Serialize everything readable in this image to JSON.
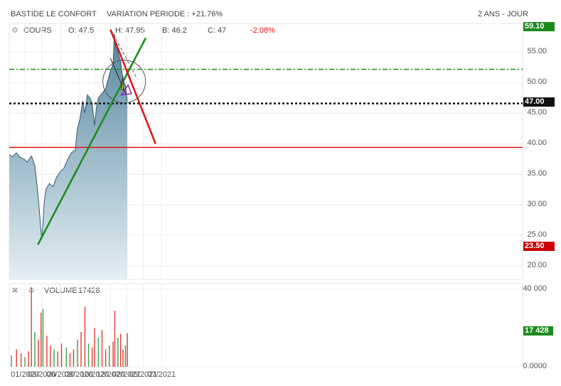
{
  "header": {
    "title": "BASTIDE LE CONFORT",
    "variation": "VARIATION PERIODE : +21.76%",
    "period": "2 ANS - JOUR"
  },
  "quote": {
    "label": "COURS",
    "open": "O: 47.5",
    "high": "H: 47.95",
    "low": "B: 46.2",
    "close": "C: 47",
    "change": "-2.08%"
  },
  "volume_panel": {
    "label": "VOLUME",
    "value": "17428"
  },
  "badges": {
    "top": "59.10",
    "last": "47.00",
    "bottom": "23.50",
    "volume": "17 428",
    "green": "#1e8a1e",
    "dark": "#111111",
    "red": "#cc0000"
  },
  "colors": {
    "area_top": "#56879f",
    "area_bottom": "#e4eef4",
    "line": "#33586e",
    "vol_red": "#e53935",
    "vol_green": "#43a047",
    "trend_green": "#1a8a1a",
    "trend_red": "#e01414"
  },
  "chart_data": {
    "type": "area",
    "title": "BASTIDE LE CONFORT",
    "x_ticks": [
      "01/2020",
      "03/2020",
      "06/2020",
      "08/2020",
      "10/2020",
      "12/2020",
      "02/2021",
      "05/2021",
      "07/2021"
    ],
    "y_ticks": [
      "55.00",
      "50.00",
      "45.00",
      "40.00",
      "35.00",
      "30.00",
      "25.00",
      "20.00"
    ],
    "ylim": [
      17.8,
      59.7
    ],
    "volume_ticks": [
      "40 000",
      "0.0000"
    ],
    "volume_ylim": [
      0,
      40000
    ],
    "series": [
      {
        "name": "COURS",
        "x": [
          "2019-11-01",
          "2019-11-15",
          "2019-12-01",
          "2019-12-15",
          "2020-01-01",
          "2020-01-15",
          "2020-02-01",
          "2020-02-15",
          "2020-02-25",
          "2020-03-05",
          "2020-03-12",
          "2020-03-16",
          "2020-03-20",
          "2020-03-25",
          "2020-04-01",
          "2020-04-15",
          "2020-05-01",
          "2020-05-15",
          "2020-06-01",
          "2020-06-15",
          "2020-07-01",
          "2020-07-15",
          "2020-08-01",
          "2020-08-10",
          "2020-08-20",
          "2020-09-01",
          "2020-09-10",
          "2020-09-20",
          "2020-10-01",
          "2020-10-10",
          "2020-10-20",
          "2020-10-28",
          "2020-11-05",
          "2020-11-15",
          "2020-11-25",
          "2020-12-05",
          "2020-12-15",
          "2020-12-25",
          "2021-01-05",
          "2021-01-10",
          "2021-01-15",
          "2021-01-25",
          "2021-02-05",
          "2021-02-15",
          "2021-02-25",
          "2021-03-05"
        ],
        "values": [
          38.2,
          37.9,
          38.5,
          37.8,
          37.5,
          37.0,
          38.0,
          36.5,
          33.0,
          29.0,
          25.5,
          24.5,
          27.0,
          30.5,
          32.5,
          33.5,
          33.0,
          34.5,
          35.5,
          36.0,
          37.5,
          38.5,
          39.0,
          42.5,
          44.0,
          47.0,
          45.0,
          48.0,
          47.5,
          46.5,
          43.0,
          46.0,
          47.5,
          48.0,
          48.5,
          49.0,
          50.5,
          52.0,
          53.0,
          58.0,
          56.0,
          55.0,
          53.5,
          50.5,
          49.5,
          47.0
        ]
      }
    ],
    "volume": [
      {
        "x": "2019-11-10",
        "v": 6000
      },
      {
        "x": "2019-12-01",
        "v": 9000
      },
      {
        "x": "2019-12-20",
        "v": 7000
      },
      {
        "x": "2020-01-05",
        "v": 5000
      },
      {
        "x": "2020-01-20",
        "v": 8000
      },
      {
        "x": "2020-02-01",
        "v": 41000
      },
      {
        "x": "2020-02-15",
        "v": 18000
      },
      {
        "x": "2020-03-01",
        "v": 14000
      },
      {
        "x": "2020-03-12",
        "v": 28000
      },
      {
        "x": "2020-03-20",
        "v": 30000
      },
      {
        "x": "2020-04-05",
        "v": 16000
      },
      {
        "x": "2020-04-20",
        "v": 11000
      },
      {
        "x": "2020-05-05",
        "v": 9000
      },
      {
        "x": "2020-05-20",
        "v": 8000
      },
      {
        "x": "2020-06-05",
        "v": 12000
      },
      {
        "x": "2020-06-25",
        "v": 10000
      },
      {
        "x": "2020-07-10",
        "v": 7000
      },
      {
        "x": "2020-07-25",
        "v": 9000
      },
      {
        "x": "2020-08-10",
        "v": 14000
      },
      {
        "x": "2020-08-25",
        "v": 18000
      },
      {
        "x": "2020-09-10",
        "v": 31000
      },
      {
        "x": "2020-09-25",
        "v": 12000
      },
      {
        "x": "2020-10-10",
        "v": 10000
      },
      {
        "x": "2020-10-20",
        "v": 20000
      },
      {
        "x": "2020-11-05",
        "v": 15000
      },
      {
        "x": "2020-11-20",
        "v": 19000
      },
      {
        "x": "2020-12-05",
        "v": 9000
      },
      {
        "x": "2020-12-20",
        "v": 11000
      },
      {
        "x": "2021-01-05",
        "v": 13000
      },
      {
        "x": "2021-01-12",
        "v": 29000
      },
      {
        "x": "2021-01-25",
        "v": 15000
      },
      {
        "x": "2021-02-05",
        "v": 17000
      },
      {
        "x": "2021-02-15",
        "v": 9000
      },
      {
        "x": "2021-02-25",
        "v": 11000
      },
      {
        "x": "2021-03-05",
        "v": 17428
      }
    ],
    "horizontal_levels": [
      {
        "y": 52.2,
        "style": "dash-dot",
        "color": "#1a8a1a"
      },
      {
        "y": 46.6,
        "style": "dotted",
        "color": "#111111"
      },
      {
        "y": 39.4,
        "style": "solid",
        "color": "#e01414"
      }
    ],
    "trendlines": [
      {
        "x1": "2020-02-28",
        "y1": 23.5,
        "x2": "2021-05-20",
        "y2": 57.3,
        "color": "#1a8a1a"
      },
      {
        "x1": "2020-12-25",
        "y1": 58.7,
        "x2": "2021-06-30",
        "y2": 40.0,
        "color": "#e01414"
      }
    ]
  }
}
